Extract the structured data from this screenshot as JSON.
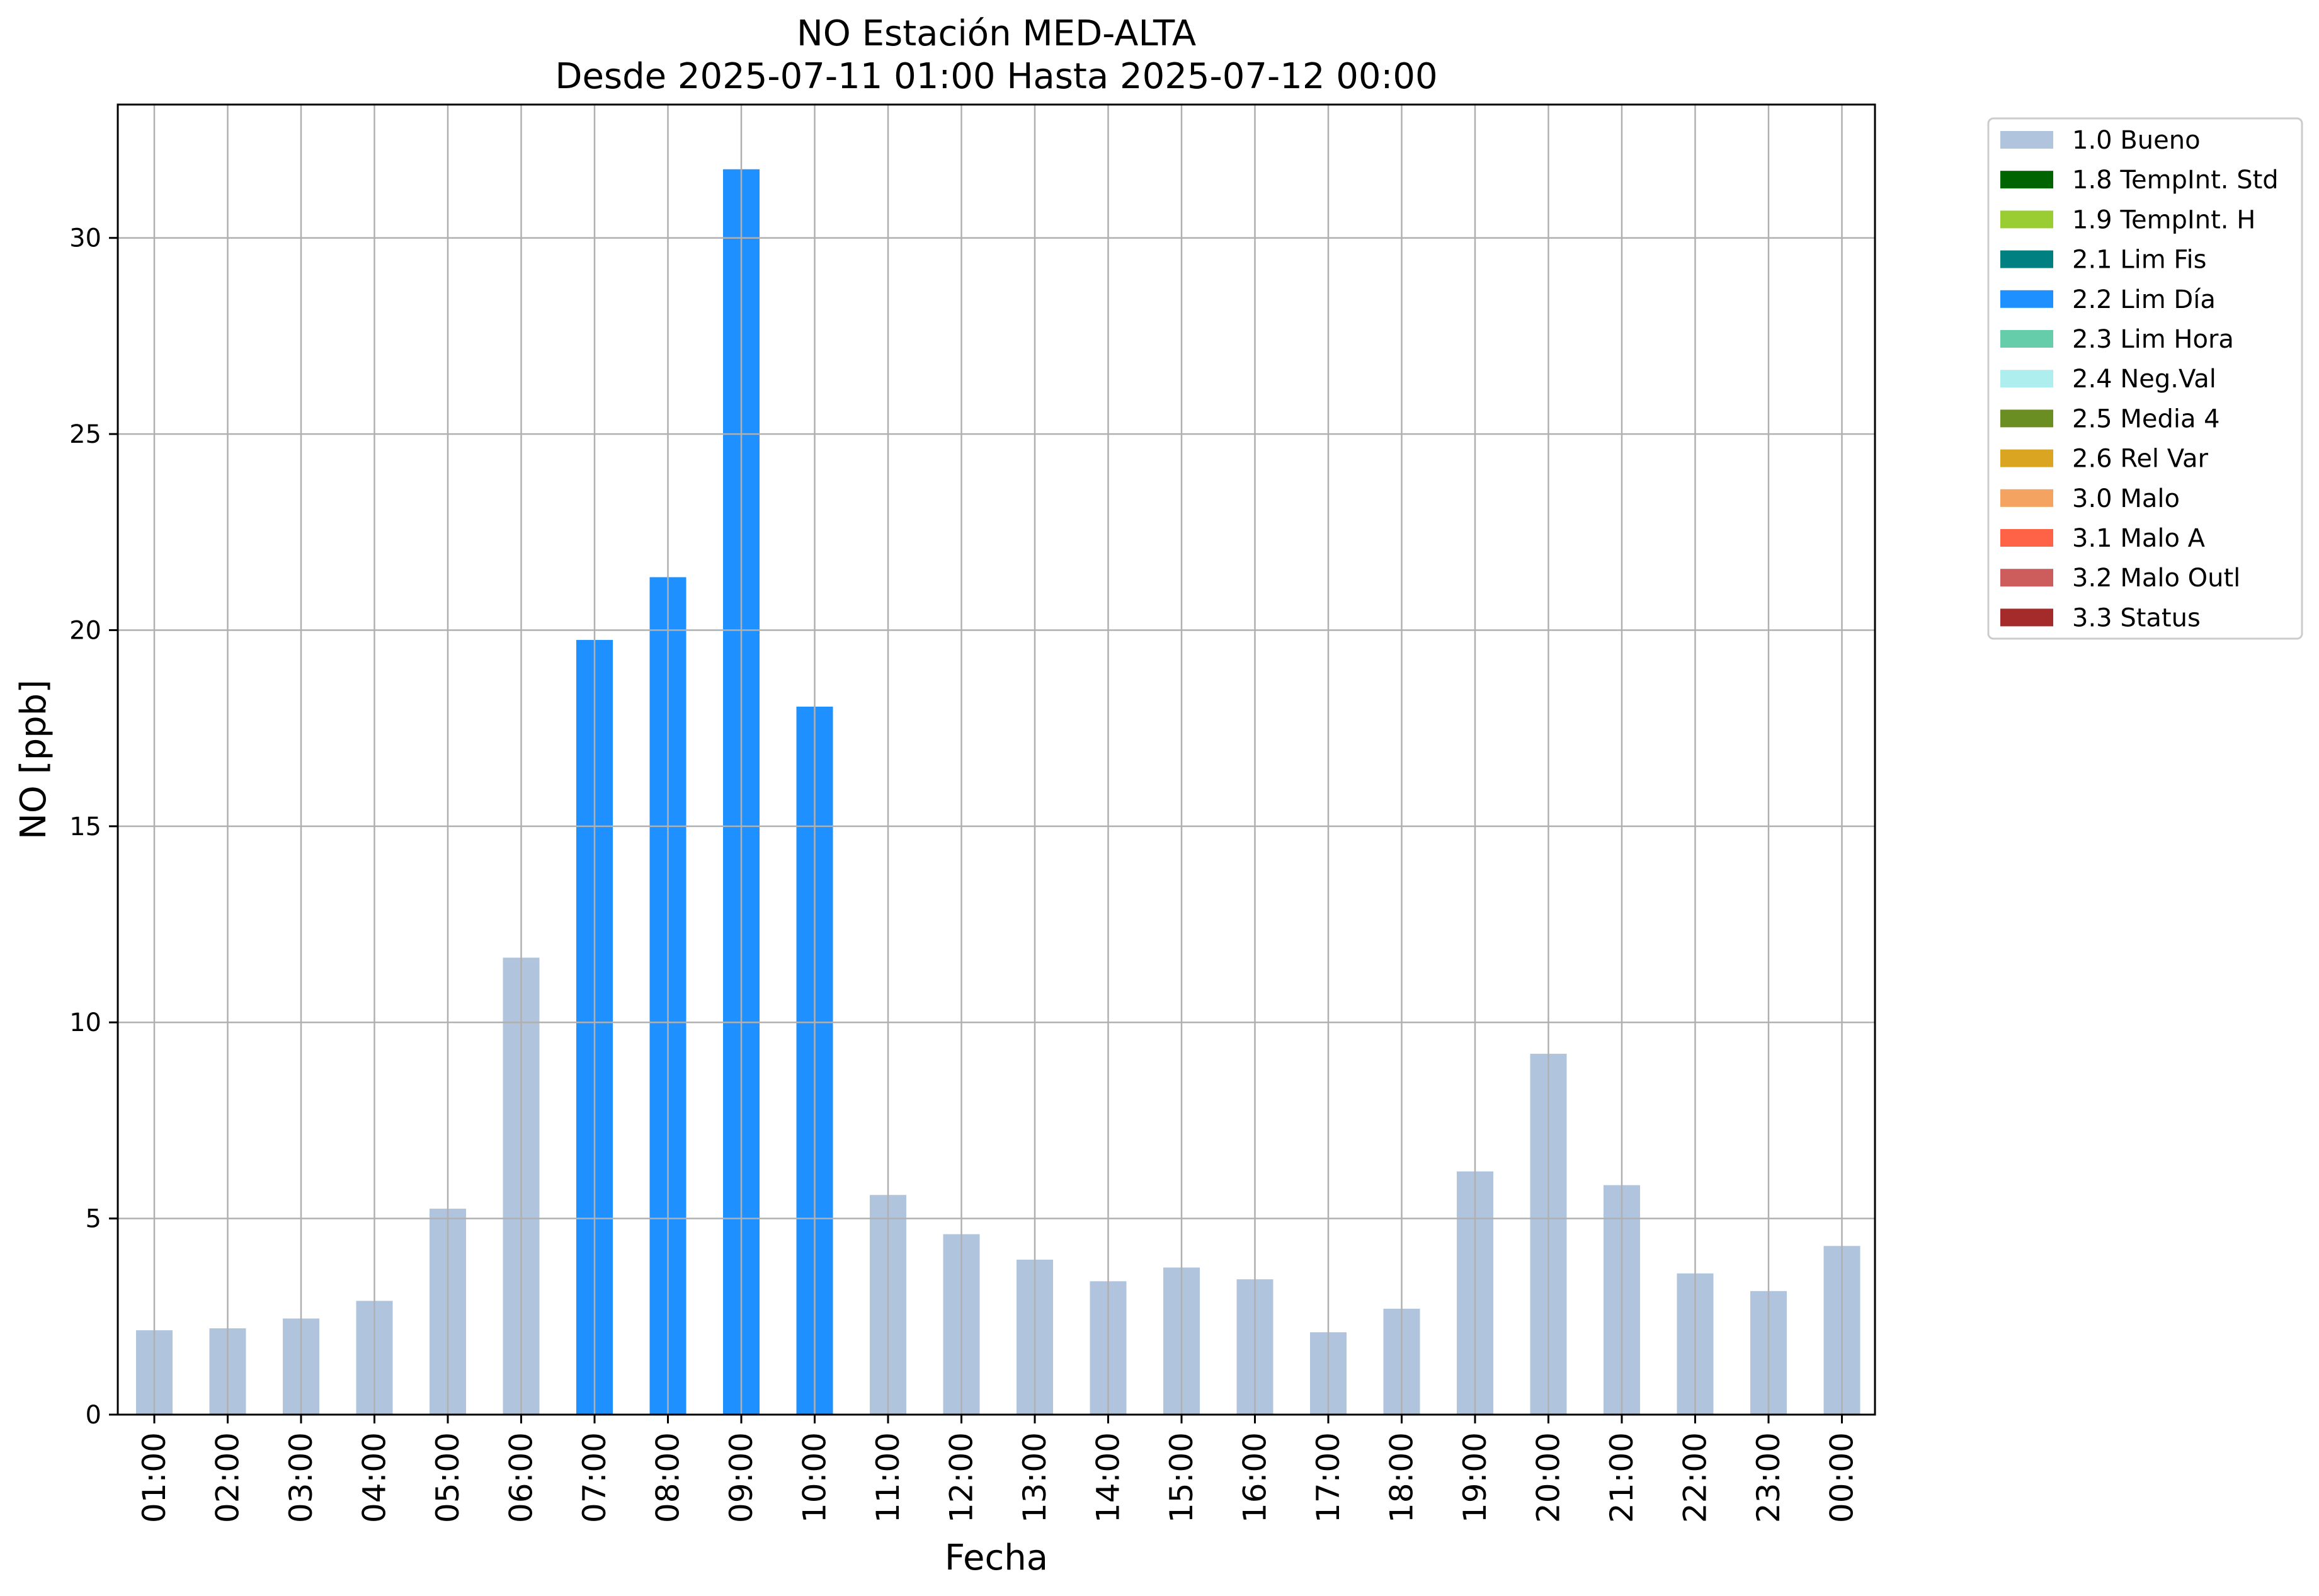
{
  "chart_data": {
    "type": "bar",
    "title": "NO Estación MED-ALTA",
    "subtitle": "Desde 2025-07-11 01:00 Hasta 2025-07-12 00:00",
    "xlabel": "Fecha",
    "ylabel": "NO [ppb]",
    "ylim": [
      0,
      33.4
    ],
    "yticks": [
      0,
      5,
      10,
      15,
      20,
      25,
      30
    ],
    "grid": true,
    "legend_placement": "outside-top-right",
    "categories": [
      "01:00",
      "02:00",
      "03:00",
      "04:00",
      "05:00",
      "06:00",
      "07:00",
      "08:00",
      "09:00",
      "10:00",
      "11:00",
      "12:00",
      "13:00",
      "14:00",
      "15:00",
      "16:00",
      "17:00",
      "18:00",
      "19:00",
      "20:00",
      "21:00",
      "22:00",
      "23:00",
      "00:00"
    ],
    "values": [
      2.15,
      2.2,
      2.45,
      2.9,
      5.25,
      11.65,
      19.75,
      21.35,
      31.75,
      18.05,
      5.6,
      4.6,
      3.95,
      3.4,
      3.75,
      3.45,
      2.1,
      2.7,
      6.2,
      9.2,
      5.85,
      3.6,
      3.15,
      4.3
    ],
    "flags": [
      "1.0 Bueno",
      "1.0 Bueno",
      "1.0 Bueno",
      "1.0 Bueno",
      "1.0 Bueno",
      "1.0 Bueno",
      "2.2 Lim Día",
      "2.2 Lim Día",
      "2.2 Lim Día",
      "2.2 Lim Día",
      "1.0 Bueno",
      "1.0 Bueno",
      "1.0 Bueno",
      "1.0 Bueno",
      "1.0 Bueno",
      "1.0 Bueno",
      "1.0 Bueno",
      "1.0 Bueno",
      "1.0 Bueno",
      "1.0 Bueno",
      "1.0 Bueno",
      "1.0 Bueno",
      "1.0 Bueno",
      "1.0 Bueno"
    ],
    "legend": [
      {
        "label": "1.0 Bueno",
        "color": "#b0c4de"
      },
      {
        "label": "1.8 TempInt. Std",
        "color": "#006400"
      },
      {
        "label": "1.9 TempInt. H",
        "color": "#9acd32"
      },
      {
        "label": "2.1 Lim Fis",
        "color": "#008080"
      },
      {
        "label": "2.2 Lim Día",
        "color": "#1e90ff"
      },
      {
        "label": "2.3 Lim Hora",
        "color": "#66cdaa"
      },
      {
        "label": "2.4 Neg.Val",
        "color": "#afeeee"
      },
      {
        "label": "2.5 Media 4",
        "color": "#6b8e23"
      },
      {
        "label": "2.6 Rel Var",
        "color": "#daa520"
      },
      {
        "label": "3.0 Malo",
        "color": "#f4a460"
      },
      {
        "label": "3.1 Malo A",
        "color": "#ff6347"
      },
      {
        "label": "3.2 Malo Outl",
        "color": "#cd5c5c"
      },
      {
        "label": "3.3 Status",
        "color": "#a52a2a"
      }
    ]
  }
}
